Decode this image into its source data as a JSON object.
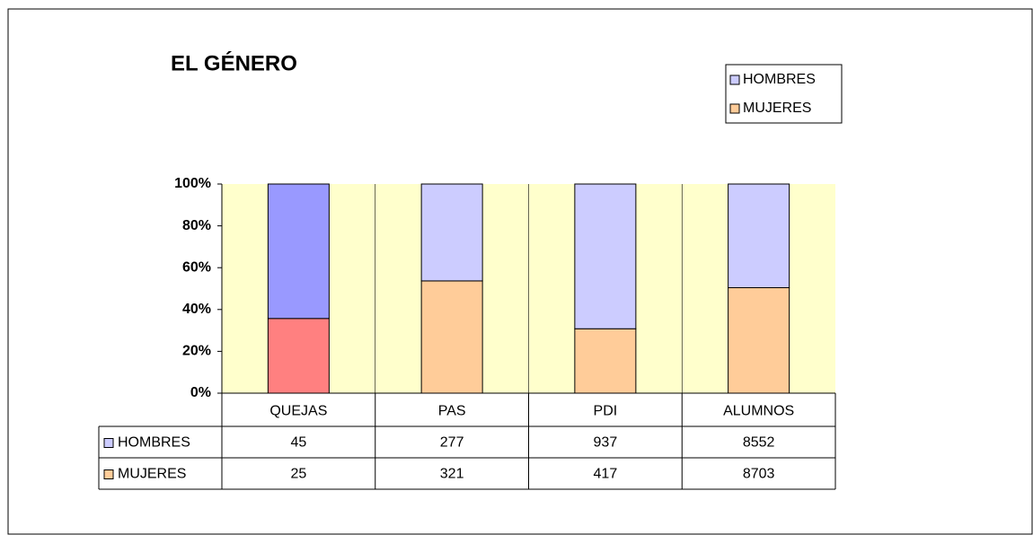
{
  "chart_data": {
    "type": "stacked_percent_bar",
    "title": "EL GÉNERO",
    "categories": [
      "QUEJAS",
      "PAS",
      "PDI",
      "ALUMNOS"
    ],
    "series": [
      {
        "name": "HOMBRES",
        "color": "#ccccff",
        "point_colors": [
          "#9999ff",
          "#ccccff",
          "#ccccff",
          "#ccccff"
        ],
        "values": [
          45,
          277,
          937,
          8552
        ]
      },
      {
        "name": "MUJERES",
        "color": "#ffcc99",
        "point_colors": [
          "#ff8080",
          "#ffcc99",
          "#ffcc99",
          "#ffcc99"
        ],
        "values": [
          25,
          321,
          417,
          8703
        ]
      }
    ],
    "ylim": [
      0,
      100
    ],
    "yticks": [
      {
        "value": 0,
        "label": "0%"
      },
      {
        "value": 20,
        "label": "20%"
      },
      {
        "value": 40,
        "label": "40%"
      },
      {
        "value": 60,
        "label": "60%"
      },
      {
        "value": 80,
        "label": "80%"
      },
      {
        "value": 100,
        "label": "100%"
      }
    ],
    "plot_background": "#ffffcc",
    "legend": "top-right",
    "data_table": true
  }
}
